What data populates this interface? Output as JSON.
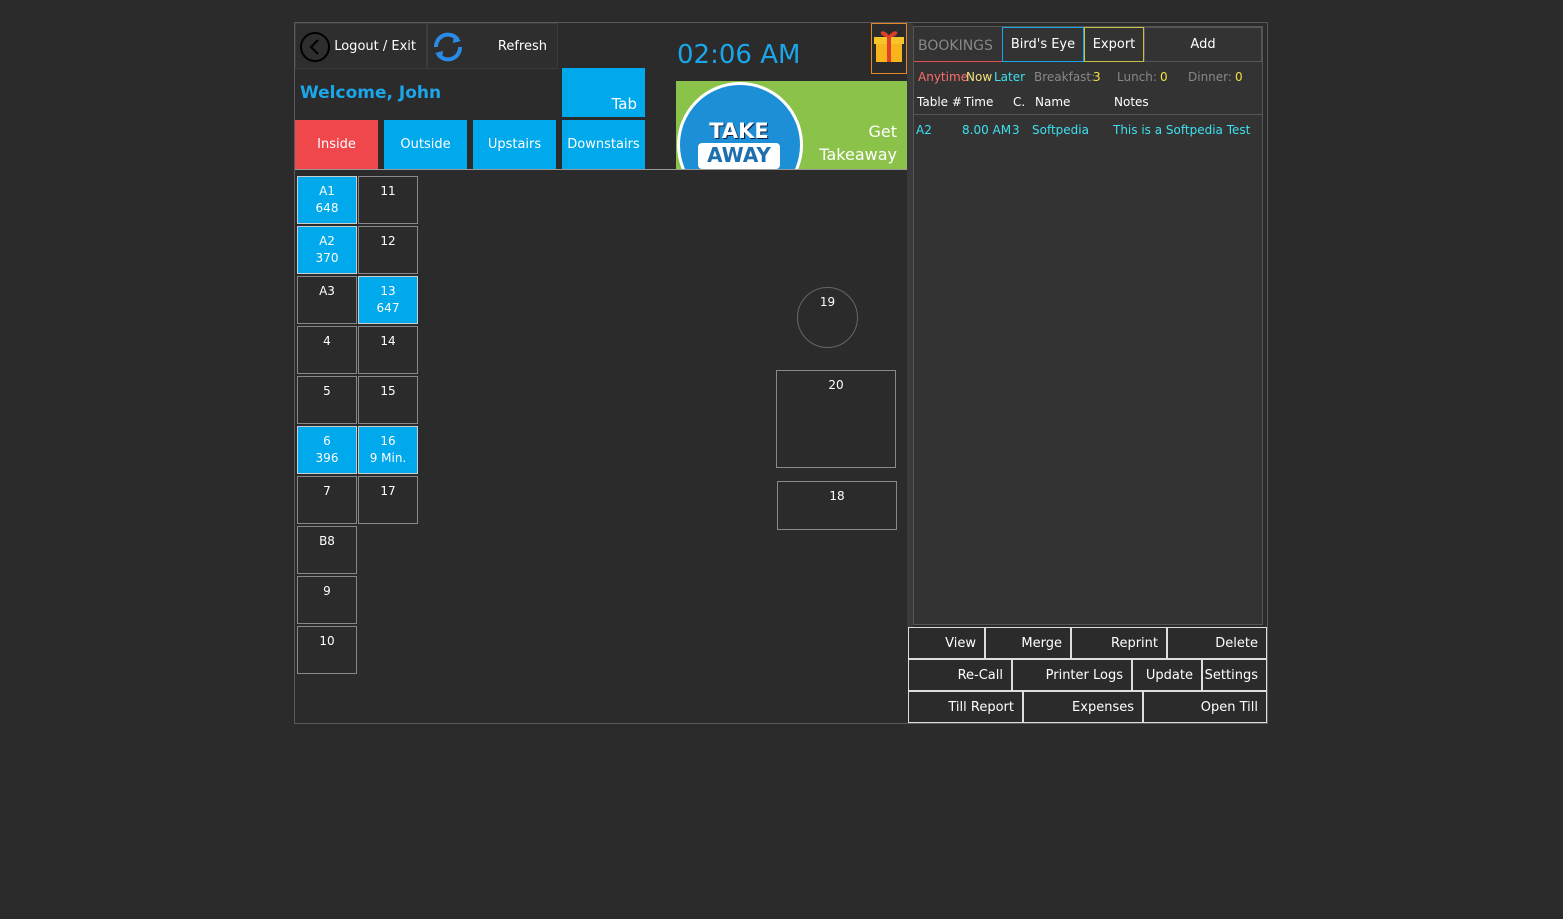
{
  "header": {
    "logout": "Logout / Exit",
    "refresh": "Refresh",
    "time": "02:06 AM",
    "welcome": "Welcome, John",
    "tab": "Tab"
  },
  "tabs": [
    "Inside",
    "Outside",
    "Upstairs",
    "Downstairs"
  ],
  "takeaway": {
    "logo_top": "TAKE",
    "logo_bottom": "AWAY",
    "label": "Get Takeaway"
  },
  "tables": [
    {
      "label": "A1",
      "detail": 648
    },
    {
      "label": "A2",
      "detail": 370
    },
    {
      "label": "A3"
    },
    {
      "label": "4"
    },
    {
      "label": "5"
    },
    {
      "label": "6",
      "detail": 396
    },
    {
      "label": "7"
    },
    {
      "label": "B8"
    },
    {
      "label": "9"
    },
    {
      "label": "10"
    },
    {
      "label": "11"
    },
    {
      "label": "12"
    },
    {
      "label": "13",
      "detail": 647
    },
    {
      "label": "14"
    },
    {
      "label": "15"
    },
    {
      "label": "16",
      "detail": "9 Min."
    },
    {
      "label": "17"
    },
    {
      "label": "19"
    },
    {
      "label": "20"
    },
    {
      "label": "18"
    }
  ],
  "bookings": {
    "title": "BOOKINGS",
    "buttons": [
      "Bird's Eye",
      "Export",
      "Add"
    ],
    "filters": [
      "Anytime",
      "Now",
      "Later"
    ],
    "meals": [
      {
        "label": "Breakfast:",
        "count": 3
      },
      {
        "label": "Lunch:",
        "count": 0
      },
      {
        "label": "Dinner:",
        "count": 0
      }
    ],
    "columns": [
      "Table #",
      "Time",
      "C.",
      "Name",
      "Notes"
    ],
    "rows": [
      [
        "A2",
        "8.00 AM",
        "3",
        "Softpedia",
        "This is a Softpedia Test"
      ]
    ]
  },
  "actions": [
    [
      "View",
      "Merge",
      "Reprint",
      "Delete"
    ],
    [
      "Re-Call",
      "Printer Logs",
      "Update",
      "Settings"
    ],
    [
      "Till Report",
      "Expenses",
      "Open Till"
    ]
  ]
}
